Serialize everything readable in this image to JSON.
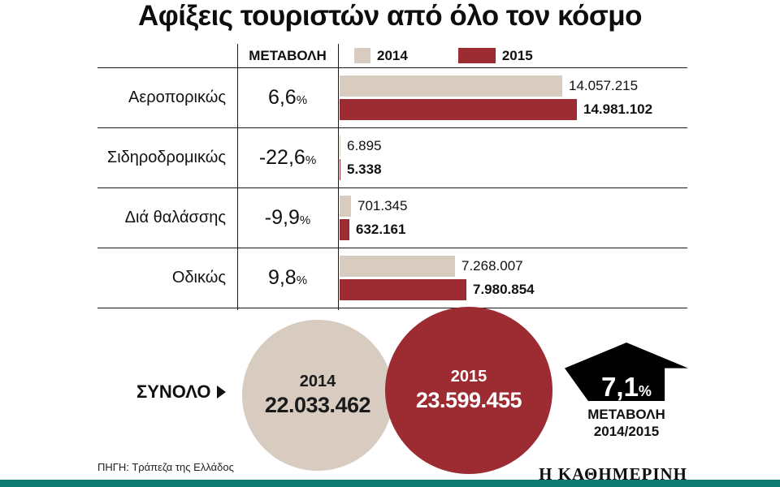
{
  "title": "Αφίξεις τουριστών από όλο τον κόσμο",
  "header": {
    "change_label": "ΜΕΤΑΒΟΛΗ"
  },
  "legend": {
    "y2014": "2014",
    "y2015": "2015"
  },
  "chart_data": {
    "type": "bar",
    "orientation": "horizontal",
    "title": "Αφίξεις τουριστών από όλο τον κόσμο",
    "categories": [
      "Αεροπορικώς",
      "Σιδηροδρομικώς",
      "Διά θαλάσσης",
      "Οδικώς"
    ],
    "series": [
      {
        "name": "2014",
        "color": "#d8cbc0",
        "values": [
          14057215,
          6895,
          701345,
          7268007
        ]
      },
      {
        "name": "2015",
        "color": "#9d2c32",
        "values": [
          14981102,
          5338,
          632161,
          7980854
        ]
      }
    ],
    "value_labels": {
      "2014": [
        "14.057.215",
        "6.895",
        "701.345",
        "7.268.007"
      ],
      "2015": [
        "14.981.102",
        "5.338",
        "632.161",
        "7.980.854"
      ]
    },
    "changes": [
      {
        "value": "6,6",
        "suffix": "%"
      },
      {
        "value": "-22,6",
        "suffix": "%"
      },
      {
        "value": "-9,9",
        "suffix": "%"
      },
      {
        "value": "9,8",
        "suffix": "%"
      }
    ],
    "totals": {
      "label": "ΣΥΝΟΛΟ",
      "y2014": {
        "year": "2014",
        "value": 22033462,
        "label": "22.033.462"
      },
      "y2015": {
        "year": "2015",
        "value": 23599455,
        "label": "23.599.455"
      }
    },
    "total_change": {
      "value": "7,1",
      "suffix": "%",
      "caption_line1": "ΜΕΤΑΒΟΛΗ",
      "caption_line2": "2014/2015"
    },
    "xlim": [
      0,
      14981102
    ],
    "grid": false,
    "legend_position": "top"
  },
  "footer": {
    "source": "ΠΗΓΗ: Τράπεζα της Ελλάδος",
    "brand": "Η ΚΑΘΗΜΕΡΙΝΗ"
  },
  "colors": {
    "y2014": "#d8cbc0",
    "y2015": "#9d2c32",
    "footer_bar": "#0d7b6f",
    "arrow": "#000000"
  }
}
